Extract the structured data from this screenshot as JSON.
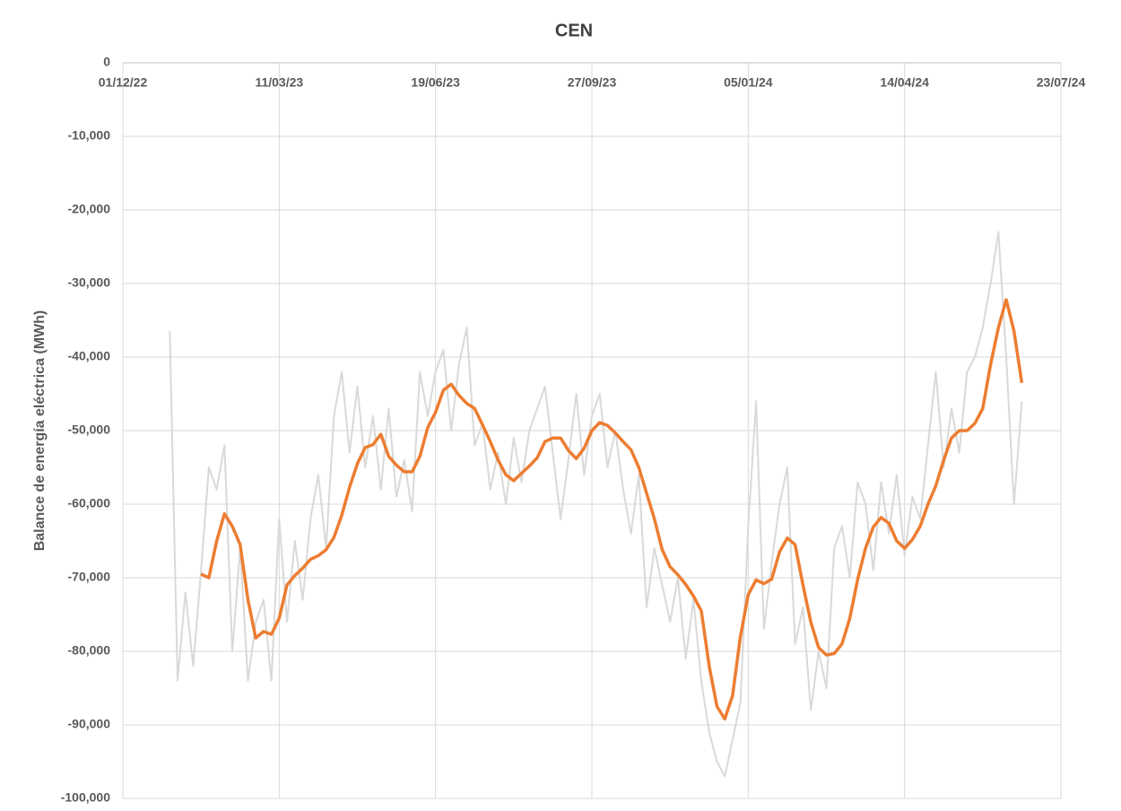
{
  "chart_data": {
    "type": "line",
    "title": "CEN",
    "y_label": "Balance de energía eléctrica (MWh)",
    "x": [
      "2022-12-31",
      "2023-01-05",
      "2023-01-10",
      "2023-01-15",
      "2023-01-20",
      "2023-01-25",
      "2023-01-30",
      "2023-02-04",
      "2023-02-09",
      "2023-02-14",
      "2023-02-19",
      "2023-02-24",
      "2023-03-01",
      "2023-03-06",
      "2023-03-11",
      "2023-03-16",
      "2023-03-21",
      "2023-03-26",
      "2023-03-31",
      "2023-04-05",
      "2023-04-10",
      "2023-04-15",
      "2023-04-20",
      "2023-04-25",
      "2023-04-30",
      "2023-05-05",
      "2023-05-10",
      "2023-05-15",
      "2023-05-20",
      "2023-05-25",
      "2023-05-30",
      "2023-06-04",
      "2023-06-09",
      "2023-06-14",
      "2023-06-19",
      "2023-06-24",
      "2023-06-29",
      "2023-07-04",
      "2023-07-09",
      "2023-07-14",
      "2023-07-19",
      "2023-07-24",
      "2023-07-29",
      "2023-08-03",
      "2023-08-08",
      "2023-08-13",
      "2023-08-18",
      "2023-08-23",
      "2023-08-28",
      "2023-09-02",
      "2023-09-07",
      "2023-09-12",
      "2023-09-17",
      "2023-09-22",
      "2023-09-27",
      "2023-10-02",
      "2023-10-07",
      "2023-10-12",
      "2023-10-17",
      "2023-10-22",
      "2023-10-27",
      "2023-11-01",
      "2023-11-06",
      "2023-11-11",
      "2023-11-16",
      "2023-11-21",
      "2023-11-26",
      "2023-12-01",
      "2023-12-06",
      "2023-12-11",
      "2023-12-16",
      "2023-12-21",
      "2023-12-26",
      "2023-12-31",
      "2024-01-05",
      "2024-01-10",
      "2024-01-15",
      "2024-01-20",
      "2024-01-25",
      "2024-01-30",
      "2024-02-04",
      "2024-02-09",
      "2024-02-14",
      "2024-02-19",
      "2024-02-24",
      "2024-02-29",
      "2024-03-05",
      "2024-03-10",
      "2024-03-15",
      "2024-03-20",
      "2024-03-25",
      "2024-03-30",
      "2024-04-04",
      "2024-04-09",
      "2024-04-14",
      "2024-04-19",
      "2024-04-24",
      "2024-04-29",
      "2024-05-04",
      "2024-05-09",
      "2024-05-14",
      "2024-05-19",
      "2024-05-24",
      "2024-05-29",
      "2024-06-03",
      "2024-06-08",
      "2024-06-13",
      "2024-06-18",
      "2024-06-23",
      "2024-06-28"
    ],
    "series": [
      {
        "color": "#d9d9d9",
        "width": 2,
        "values": [
          -36500,
          -84000,
          -72000,
          -82000,
          -69000,
          -55000,
          -58000,
          -52000,
          -80000,
          -66000,
          -84000,
          -76000,
          -73000,
          -84000,
          -62000,
          -76000,
          -65000,
          -73000,
          -62000,
          -56000,
          -66000,
          -48000,
          -42000,
          -53000,
          -44000,
          -55000,
          -48000,
          -58000,
          -47000,
          -59000,
          -54000,
          -61000,
          -42000,
          -48000,
          -42000,
          -39000,
          -50000,
          -41000,
          -36000,
          -52000,
          -49000,
          -58000,
          -53000,
          -60000,
          -51000,
          -57000,
          -50000,
          -47000,
          -44000,
          -53000,
          -62000,
          -54000,
          -45000,
          -56000,
          -48000,
          -45000,
          -55000,
          -50000,
          -58000,
          -64000,
          -56000,
          -74000,
          -66000,
          -71000,
          -76000,
          -70000,
          -81000,
          -73000,
          -84000,
          -91000,
          -95000,
          -97000,
          -92000,
          -87000,
          -63000,
          -46000,
          -77000,
          -68000,
          -60000,
          -55000,
          -79000,
          -74000,
          -88000,
          -80000,
          -85000,
          -66000,
          -63000,
          -70000,
          -57000,
          -60000,
          -69000,
          -57000,
          -64000,
          -56000,
          -67000,
          -59000,
          -62000,
          -52000,
          -42000,
          -55000,
          -47000,
          -53000,
          -42000,
          -40000,
          -36000,
          -30000,
          -23000,
          -40000,
          -60000,
          -46000
        ]
      },
      {
        "color": "#ed7d31",
        "width": 3.5,
        "values": [
          null,
          null,
          null,
          null,
          -69500,
          -70000,
          -65000,
          -61300,
          -63000,
          -65500,
          -73000,
          -78200,
          -77300,
          -77700,
          -75500,
          -71000,
          -69700,
          -68700,
          -67500,
          -67000,
          -66200,
          -64500,
          -61500,
          -57700,
          -54500,
          -52300,
          -51900,
          -50500,
          -53500,
          -54700,
          -55600,
          -55600,
          -53500,
          -49600,
          -47500,
          -44500,
          -43700,
          -45200,
          -46300,
          -47000,
          -49200,
          -51500,
          -54000,
          -56000,
          -56800,
          -55800,
          -54800,
          -53700,
          -51500,
          -51000,
          -51000,
          -52700,
          -53800,
          -52400,
          -50000,
          -48900,
          -49300,
          -50300,
          -51500,
          -52600,
          -55000,
          -58500,
          -62000,
          -66200,
          -68500,
          -69600,
          -70900,
          -72500,
          -74500,
          -82000,
          -87500,
          -89200,
          -86000,
          -78000,
          -72300,
          -70300,
          -70800,
          -70200,
          -66500,
          -64600,
          -65500,
          -71000,
          -76000,
          -79500,
          -80500,
          -80300,
          -79000,
          -75500,
          -70200,
          -66000,
          -63100,
          -61800,
          -62600,
          -65000,
          -66000,
          -64800,
          -63000,
          -60000,
          -57500,
          -54000,
          -51000,
          -50000,
          -50000,
          -49000,
          -47000,
          -41000,
          -36000,
          -32200,
          -36500,
          -43500
        ]
      }
    ],
    "xlim": [
      "2022-12-01",
      "2024-07-23"
    ],
    "xticks": [
      {
        "value": "2022-12-01",
        "label": "01/12/22"
      },
      {
        "value": "2023-03-11",
        "label": "11/03/23"
      },
      {
        "value": "2023-06-19",
        "label": "19/06/23"
      },
      {
        "value": "2023-09-27",
        "label": "27/09/23"
      },
      {
        "value": "2024-01-05",
        "label": "05/01/24"
      },
      {
        "value": "2024-04-14",
        "label": "14/04/24"
      },
      {
        "value": "2024-07-23",
        "label": "23/07/24"
      }
    ],
    "ylim": [
      -100000,
      0
    ],
    "yticks": [
      {
        "value": -100000,
        "label": "-100,000"
      },
      {
        "value": -90000,
        "label": "-90,000"
      },
      {
        "value": -80000,
        "label": "-80,000"
      },
      {
        "value": -70000,
        "label": "-70,000"
      },
      {
        "value": -60000,
        "label": "-60,000"
      },
      {
        "value": -50000,
        "label": "-50,000"
      },
      {
        "value": -40000,
        "label": "-40,000"
      },
      {
        "value": -30000,
        "label": "-30,000"
      },
      {
        "value": -20000,
        "label": "-20,000"
      },
      {
        "value": -10000,
        "label": "-10,000"
      },
      0
    ],
    "grid": true
  }
}
